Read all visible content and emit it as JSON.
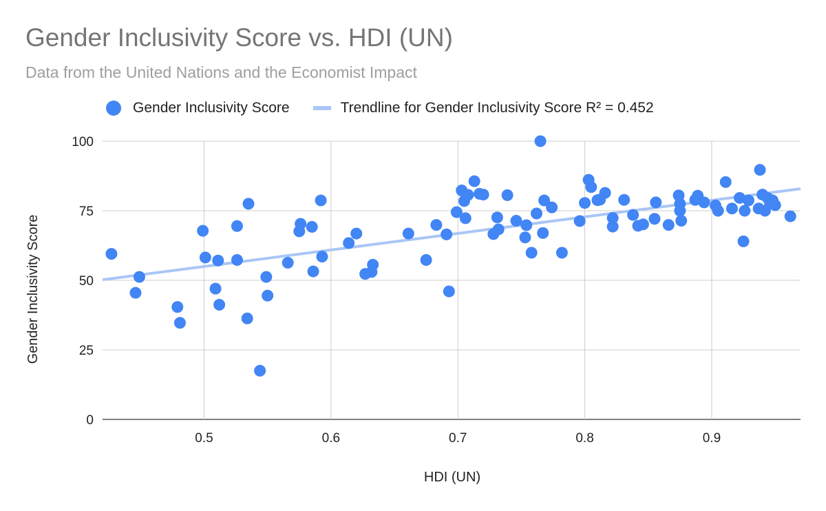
{
  "chart_data": {
    "type": "scatter",
    "title": "Gender Inclusivity Score vs. HDI (UN)",
    "subtitle": "Data from the United Nations and the Economist Impact",
    "xlabel": "HDI (UN)",
    "ylabel": "Gender Inclusivity Score",
    "xlim": [
      0.42,
      0.97
    ],
    "ylim": [
      0,
      100
    ],
    "x_ticks": [
      "0.5",
      "0.6",
      "0.7",
      "0.8",
      "0.9"
    ],
    "x_tick_values": [
      0.5,
      0.6,
      0.7,
      0.8,
      0.9
    ],
    "y_ticks": [
      "0",
      "25",
      "50",
      "75",
      "100"
    ],
    "y_tick_values": [
      0,
      25,
      50,
      75,
      100
    ],
    "grid": true,
    "legend_position": "top",
    "series": [
      {
        "name": "Gender Inclusivity Score",
        "color": "#4285f4",
        "x": [
          0.427,
          0.446,
          0.449,
          0.479,
          0.481,
          0.499,
          0.501,
          0.509,
          0.511,
          0.512,
          0.526,
          0.526,
          0.534,
          0.535,
          0.544,
          0.549,
          0.55,
          0.566,
          0.575,
          0.576,
          0.585,
          0.586,
          0.592,
          0.593,
          0.614,
          0.62,
          0.627,
          0.632,
          0.633,
          0.661,
          0.675,
          0.683,
          0.691,
          0.693,
          0.699,
          0.703,
          0.705,
          0.706,
          0.708,
          0.713,
          0.717,
          0.72,
          0.728,
          0.731,
          0.732,
          0.739,
          0.746,
          0.753,
          0.754,
          0.758,
          0.762,
          0.765,
          0.767,
          0.768,
          0.774,
          0.782,
          0.796,
          0.8,
          0.803,
          0.805,
          0.81,
          0.812,
          0.816,
          0.822,
          0.822,
          0.831,
          0.838,
          0.842,
          0.846,
          0.855,
          0.856,
          0.866,
          0.874,
          0.875,
          0.875,
          0.876,
          0.887,
          0.889,
          0.894,
          0.903,
          0.905,
          0.911,
          0.916,
          0.922,
          0.925,
          0.926,
          0.929,
          0.937,
          0.938,
          0.94,
          0.942,
          0.944,
          0.946,
          0.948,
          0.95,
          0.962
        ],
        "y": [
          59.5,
          45.5,
          51.2,
          40.4,
          34.7,
          67.8,
          58.2,
          47.0,
          57.1,
          41.2,
          69.5,
          57.3,
          36.3,
          77.5,
          17.5,
          51.2,
          44.5,
          56.3,
          67.6,
          70.3,
          69.2,
          53.2,
          78.7,
          58.5,
          63.4,
          66.8,
          52.3,
          53.0,
          55.6,
          66.8,
          57.3,
          69.9,
          66.5,
          46.0,
          74.5,
          82.3,
          78.5,
          72.3,
          80.7,
          85.6,
          81.1,
          80.8,
          66.6,
          72.6,
          68.3,
          80.6,
          71.4,
          65.4,
          69.8,
          59.9,
          74.0,
          100.0,
          67.0,
          78.7,
          76.2,
          59.9,
          71.3,
          77.8,
          86.1,
          83.5,
          78.8,
          79.0,
          81.4,
          72.4,
          69.3,
          78.9,
          73.5,
          69.6,
          70.1,
          72.1,
          78.0,
          69.9,
          80.5,
          77.5,
          75.0,
          71.4,
          78.9,
          80.4,
          78.0,
          76.9,
          75.0,
          85.3,
          75.8,
          79.6,
          64.0,
          75.0,
          78.7,
          75.8,
          89.7,
          80.8,
          75.0,
          79.6,
          77.6,
          78.7,
          77.0,
          73.0
        ]
      },
      {
        "name": "Trendline for Gender Inclusivity Score R² = 0.452",
        "type": "trendline",
        "color": "#a9c6f6",
        "x": [
          0.42,
          0.97
        ],
        "y": [
          50.2,
          82.9
        ]
      }
    ]
  }
}
